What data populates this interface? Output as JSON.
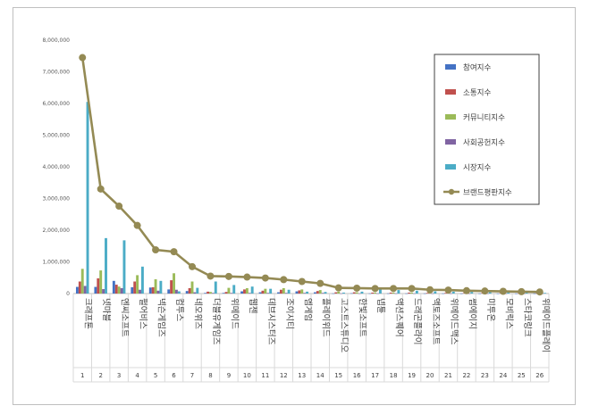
{
  "chart_data": {
    "type": "bar",
    "y_ticks": [
      "0",
      "1,000,000",
      "2,000,000",
      "3,000,000",
      "4,000,000",
      "5,000,000",
      "6,000,000",
      "7,000,000",
      "8,000,000"
    ],
    "ylim": [
      0,
      8000000
    ],
    "legend_position": "top-right",
    "categories": [
      "크래프톤",
      "넷마블",
      "엔씨소프트",
      "펄어비스",
      "넥슨게임즈",
      "컴투스",
      "네오위즈",
      "더블유게임즈",
      "위메이드",
      "웹젠",
      "데브시스터즈",
      "조이시티",
      "엠게임",
      "플레이위드",
      "고스트스튜디오",
      "한빛소프트",
      "넵튠",
      "액션스퀘어",
      "드래곤플라이",
      "액토즈소프트",
      "위메이드맥스",
      "썸에이지",
      "미투온",
      "모비릭스",
      "스타코링크",
      "위메이드플레이"
    ],
    "numbers": [
      "1",
      "2",
      "3",
      "4",
      "5",
      "6",
      "7",
      "8",
      "9",
      "10",
      "11",
      "12",
      "13",
      "14",
      "15",
      "16",
      "17",
      "18",
      "19",
      "20",
      "21",
      "22",
      "23",
      "24",
      "25",
      "26"
    ],
    "series": [
      {
        "name": "참여지수",
        "color": "#4472C4",
        "values": [
          210000,
          210000,
          400000,
          200000,
          190000,
          130000,
          80000,
          20000,
          20000,
          70000,
          40000,
          40000,
          70000,
          40000,
          5000,
          10000,
          5000,
          5000,
          5000,
          5000,
          5000,
          3000,
          3000,
          3000,
          3000,
          3000
        ]
      },
      {
        "name": "소통지수",
        "color": "#C0504D",
        "values": [
          380000,
          480000,
          280000,
          380000,
          200000,
          420000,
          170000,
          60000,
          50000,
          130000,
          90000,
          120000,
          100000,
          80000,
          40000,
          40000,
          30000,
          30000,
          30000,
          20000,
          20000,
          15000,
          15000,
          15000,
          10000,
          10000
        ]
      },
      {
        "name": "커뮤니티지수",
        "color": "#9BBB59",
        "values": [
          780000,
          730000,
          220000,
          580000,
          450000,
          640000,
          380000,
          50000,
          180000,
          170000,
          150000,
          170000,
          130000,
          110000,
          60000,
          40000,
          30000,
          30000,
          30000,
          20000,
          20000,
          15000,
          15000,
          15000,
          10000,
          10000
        ]
      },
      {
        "name": "사회공헌지수",
        "color": "#8064A2",
        "values": [
          240000,
          140000,
          170000,
          120000,
          90000,
          120000,
          40000,
          20000,
          20000,
          20000,
          20000,
          20000,
          20000,
          20000,
          5000,
          5000,
          5000,
          5000,
          5000,
          5000,
          5000,
          3000,
          3000,
          3000,
          3000,
          3000
        ]
      },
      {
        "name": "시장지수",
        "color": "#4BACC6",
        "values": [
          6050000,
          1750000,
          1680000,
          850000,
          400000,
          70000,
          180000,
          380000,
          270000,
          220000,
          150000,
          120000,
          60000,
          50000,
          30000,
          60000,
          130000,
          110000,
          90000,
          70000,
          60000,
          50000,
          40000,
          30000,
          30000,
          20000
        ]
      }
    ],
    "line": {
      "name": "브랜드평판지수",
      "color": "#948A54",
      "values": [
        7450000,
        3300000,
        2760000,
        2150000,
        1380000,
        1320000,
        850000,
        550000,
        540000,
        520000,
        490000,
        440000,
        380000,
        320000,
        180000,
        170000,
        160000,
        160000,
        160000,
        120000,
        110000,
        90000,
        80000,
        70000,
        60000,
        50000
      ]
    }
  }
}
